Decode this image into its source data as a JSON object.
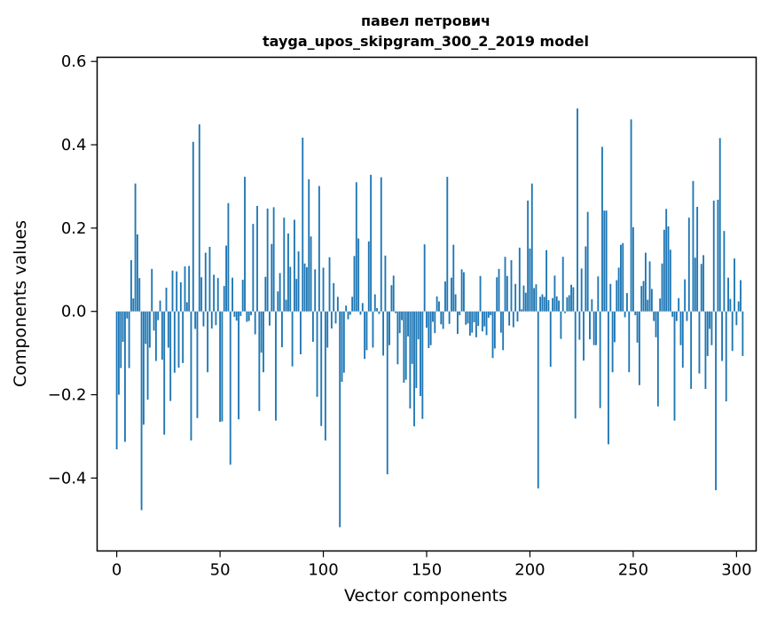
{
  "chart_data": {
    "type": "bar",
    "title_line1": "павел петрович",
    "title_line2": "tayga_upos_skipgram_300_2_2019 model",
    "xlabel": "Vector components",
    "ylabel": "Components values",
    "xlim": [
      -9.5,
      309.5
    ],
    "ylim": [
      -0.575,
      0.61
    ],
    "xticks": [
      0,
      50,
      100,
      150,
      200,
      250,
      300
    ],
    "xtick_labels": [
      "0",
      "50",
      "100",
      "150",
      "200",
      "250",
      "300"
    ],
    "yticks": [
      -0.4,
      -0.2,
      0.0,
      0.2,
      0.4,
      0.6
    ],
    "ytick_labels": [
      "−0.4",
      "−0.2",
      "0.0",
      "0.2",
      "0.4",
      "0.6"
    ],
    "bar_color": "#1f77b4",
    "values": [
      -0.331,
      -0.2,
      -0.136,
      -0.073,
      -0.313,
      -0.017,
      -0.136,
      0.123,
      0.031,
      0.307,
      0.185,
      0.08,
      -0.477,
      -0.272,
      -0.078,
      -0.212,
      -0.087,
      0.102,
      -0.046,
      -0.119,
      -0.021,
      0.026,
      -0.116,
      -0.296,
      0.057,
      -0.087,
      -0.215,
      0.098,
      -0.147,
      0.096,
      -0.135,
      0.07,
      -0.124,
      0.108,
      0.022,
      0.109,
      -0.31,
      0.407,
      -0.042,
      -0.256,
      0.449,
      0.082,
      -0.036,
      0.141,
      -0.146,
      0.155,
      -0.041,
      0.088,
      -0.033,
      0.08,
      -0.265,
      -0.264,
      0.061,
      0.158,
      0.26,
      -0.368,
      0.081,
      -0.013,
      -0.022,
      -0.259,
      -0.011,
      0.076,
      0.323,
      -0.025,
      -0.023,
      -0.009,
      0.21,
      -0.055,
      0.253,
      -0.239,
      -0.099,
      -0.146,
      0.083,
      0.247,
      -0.034,
      0.162,
      0.25,
      -0.262,
      0.048,
      0.092,
      -0.086,
      0.225,
      0.028,
      0.187,
      0.107,
      -0.132,
      0.22,
      0.078,
      0.144,
      -0.103,
      0.417,
      0.115,
      0.106,
      0.317,
      0.18,
      -0.073,
      0.101,
      -0.205,
      0.301,
      -0.275,
      0.105,
      -0.31,
      -0.087,
      0.13,
      -0.041,
      0.068,
      -0.029,
      0.035,
      -0.518,
      -0.169,
      -0.147,
      0.014,
      -0.019,
      -0.008,
      0.035,
      0.133,
      0.31,
      0.175,
      -0.008,
      0.02,
      -0.114,
      -0.093,
      0.168,
      0.328,
      -0.087,
      0.041,
      0.008,
      -0.006,
      0.322,
      -0.106,
      0.134,
      -0.391,
      -0.081,
      0.063,
      0.086,
      -0.004,
      -0.127,
      -0.052,
      -0.021,
      -0.171,
      -0.164,
      -0.06,
      -0.233,
      -0.126,
      -0.276,
      -0.184,
      -0.067,
      -0.203,
      -0.258,
      0.161,
      -0.039,
      -0.088,
      -0.081,
      -0.025,
      -0.052,
      0.036,
      0.024,
      -0.031,
      -0.042,
      0.072,
      0.323,
      -0.03,
      0.081,
      0.16,
      0.041,
      -0.054,
      -0.009,
      0.101,
      0.094,
      -0.032,
      -0.029,
      -0.058,
      -0.051,
      -0.026,
      -0.062,
      -0.035,
      0.085,
      -0.048,
      -0.036,
      -0.057,
      -0.015,
      -0.009,
      -0.112,
      -0.089,
      0.082,
      0.102,
      -0.051,
      -0.093,
      0.131,
      0.085,
      -0.034,
      0.123,
      -0.038,
      0.066,
      -0.024,
      0.153,
      0.005,
      0.062,
      0.045,
      0.266,
      0.151,
      0.307,
      0.056,
      0.065,
      -0.425,
      0.035,
      0.041,
      0.035,
      0.147,
      0.027,
      -0.133,
      0.032,
      0.086,
      0.036,
      0.026,
      -0.066,
      0.131,
      -0.004,
      0.034,
      0.039,
      0.064,
      0.058,
      -0.257,
      0.487,
      -0.068,
      0.103,
      -0.118,
      0.156,
      0.239,
      -0.067,
      0.029,
      -0.081,
      -0.081,
      0.084,
      -0.232,
      0.395,
      0.242,
      0.242,
      -0.319,
      0.066,
      -0.146,
      -0.074,
      0.075,
      0.105,
      0.16,
      0.164,
      -0.014,
      0.044,
      -0.146,
      0.461,
      0.202,
      -0.009,
      -0.075,
      -0.177,
      0.061,
      0.073,
      0.141,
      0.028,
      0.12,
      0.054,
      -0.023,
      -0.062,
      -0.228,
      0.031,
      0.115,
      0.196,
      0.246,
      0.204,
      0.148,
      -0.013,
      -0.262,
      -0.023,
      0.032,
      -0.081,
      -0.135,
      0.077,
      -0.023,
      0.225,
      -0.186,
      0.313,
      0.129,
      0.251,
      -0.149,
      0.114,
      0.135,
      -0.186,
      -0.107,
      -0.042,
      -0.081,
      0.266,
      -0.429,
      0.268,
      0.416,
      -0.119,
      0.193,
      -0.216,
      0.081,
      0.03,
      -0.095,
      0.127,
      -0.033,
      0.024,
      0.075,
      -0.107
    ]
  }
}
